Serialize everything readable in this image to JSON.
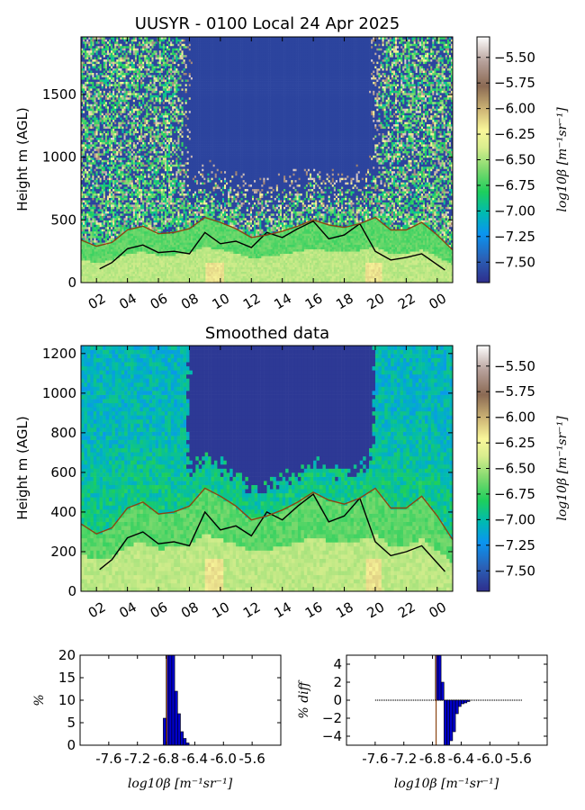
{
  "chart_data": [
    {
      "type": "heatmap",
      "title": "UUSYR - 0100 Local 24 Apr 2025",
      "ylabel": "Height m (AGL)",
      "xlabel": "",
      "x_tick_labels": [
        "02",
        "04",
        "06",
        "08",
        "10",
        "12",
        "14",
        "16",
        "18",
        "20",
        "22",
        "00"
      ],
      "x_tick_hours": [
        2,
        4,
        6,
        8,
        10,
        12,
        14,
        16,
        18,
        20,
        22,
        24
      ],
      "xlim_hours": [
        1,
        25
      ],
      "ylim": [
        0,
        1960
      ],
      "y_ticks": [
        0,
        500,
        1000,
        1500
      ],
      "colorbar": {
        "label": "log10β [m⁻¹sr⁻¹]",
        "range": [
          -7.7,
          -5.3
        ],
        "ticks": [
          -5.5,
          -5.75,
          -6.0,
          -6.25,
          -6.5,
          -6.75,
          -7.0,
          -7.25,
          -7.5
        ],
        "tick_labels": [
          "−5.50",
          "−5.75",
          "−6.00",
          "−6.25",
          "−6.50",
          "−6.75",
          "−7.00",
          "−7.25",
          "−7.50"
        ]
      },
      "series": [
        {
          "color": "#000000",
          "x": [
            2.2,
            3,
            4,
            5,
            6,
            7,
            8,
            9,
            10,
            11,
            12,
            13,
            14,
            15,
            16,
            17,
            18,
            19,
            20,
            21,
            22,
            23,
            24.5
          ],
          "y": [
            110,
            160,
            270,
            300,
            240,
            250,
            230,
            400,
            310,
            330,
            280,
            400,
            360,
            430,
            490,
            350,
            380,
            470,
            250,
            180,
            200,
            230,
            100
          ]
        },
        {
          "color": "#8b4513",
          "x": [
            1,
            2,
            3,
            4,
            5,
            6,
            7,
            8,
            9,
            10,
            11,
            12,
            13,
            14,
            15,
            16,
            17,
            18,
            19,
            20,
            21,
            22,
            23,
            24,
            25
          ],
          "y": [
            340,
            290,
            320,
            420,
            450,
            390,
            400,
            430,
            520,
            480,
            430,
            360,
            380,
            410,
            450,
            500,
            460,
            440,
            470,
            520,
            420,
            420,
            480,
            380,
            260
          ]
        }
      ]
    },
    {
      "type": "heatmap",
      "title": "Smoothed data",
      "ylabel": "Height m (AGL)",
      "xlabel": "",
      "x_tick_labels": [
        "02",
        "04",
        "06",
        "08",
        "10",
        "12",
        "14",
        "16",
        "18",
        "20",
        "22",
        "00"
      ],
      "x_tick_hours": [
        2,
        4,
        6,
        8,
        10,
        12,
        14,
        16,
        18,
        20,
        22,
        24
      ],
      "xlim_hours": [
        1,
        25
      ],
      "ylim": [
        0,
        1240
      ],
      "y_ticks": [
        0,
        200,
        400,
        600,
        800,
        1000,
        1200
      ],
      "colorbar": {
        "label": "log10β [m⁻¹sr⁻¹]",
        "range": [
          -7.7,
          -5.3
        ],
        "ticks": [
          -5.5,
          -5.75,
          -6.0,
          -6.25,
          -6.5,
          -6.75,
          -7.0,
          -7.25,
          -7.5
        ],
        "tick_labels": [
          "−5.50",
          "−5.75",
          "−6.00",
          "−6.25",
          "−6.50",
          "−6.75",
          "−7.00",
          "−7.25",
          "−7.50"
        ]
      },
      "series": [
        {
          "color": "#000000",
          "x": [
            2.2,
            3,
            4,
            5,
            6,
            7,
            8,
            9,
            10,
            11,
            12,
            13,
            14,
            15,
            16,
            17,
            18,
            19,
            20,
            21,
            22,
            23,
            24.5
          ],
          "y": [
            110,
            160,
            270,
            300,
            240,
            250,
            230,
            400,
            310,
            330,
            280,
            400,
            360,
            430,
            490,
            350,
            380,
            470,
            250,
            180,
            200,
            230,
            100
          ]
        },
        {
          "color": "#8b4513",
          "x": [
            1,
            2,
            3,
            4,
            5,
            6,
            7,
            8,
            9,
            10,
            11,
            12,
            13,
            14,
            15,
            16,
            17,
            18,
            19,
            20,
            21,
            22,
            23,
            24,
            25
          ],
          "y": [
            340,
            290,
            320,
            420,
            450,
            390,
            400,
            430,
            520,
            480,
            430,
            360,
            380,
            410,
            450,
            500,
            460,
            440,
            470,
            520,
            420,
            420,
            480,
            380,
            260
          ]
        }
      ]
    },
    {
      "type": "bar",
      "title": "",
      "ylabel": "%",
      "xlabel": "log10β [m⁻¹sr⁻¹]",
      "x_tick_labels": [
        "-7.6",
        "-7.2",
        "-6.8",
        "-6.4",
        "-6.0",
        "-5.6"
      ],
      "x_ticks": [
        -7.6,
        -7.2,
        -6.8,
        -6.4,
        -6.0,
        -5.6
      ],
      "xlim": [
        -8.0,
        -5.2
      ],
      "ylim": [
        0,
        20
      ],
      "y_ticks": [
        0,
        5,
        10,
        15,
        20
      ],
      "bin_edges": [
        -6.84,
        -6.8,
        -6.76,
        -6.72,
        -6.68,
        -6.64,
        -6.6,
        -6.56,
        -6.52,
        -6.48
      ],
      "values": [
        6,
        20,
        20,
        20,
        12,
        7,
        3,
        1.5,
        0.5
      ],
      "bar_color": "#0000cc",
      "marker_line_x": -6.79,
      "marker_line_color": "#8b4513"
    },
    {
      "type": "bar",
      "title": "",
      "ylabel": "% diff",
      "xlabel": "log10β [m⁻¹sr⁻¹]",
      "x_tick_labels": [
        "-7.6",
        "-7.2",
        "-6.8",
        "-6.4",
        "-6.0",
        "-5.6"
      ],
      "x_ticks": [
        -7.6,
        -7.2,
        -6.8,
        -6.4,
        -6.0,
        -5.6
      ],
      "xlim": [
        -8.0,
        -5.2
      ],
      "ylim": [
        -5,
        5
      ],
      "y_ticks": [
        -4,
        -2,
        0,
        2,
        4
      ],
      "bin_edges": [
        -6.76,
        -6.72,
        -6.68,
        -6.64,
        -6.6,
        -6.56,
        -6.52,
        -6.48,
        -6.44,
        -6.4,
        -6.36,
        -6.32,
        -6.28
      ],
      "values": [
        5,
        5,
        2,
        -5,
        -5,
        -4.5,
        -3.5,
        -1.5,
        -0.7,
        -0.4,
        -0.3,
        -0.15
      ],
      "bar_color": "#0000cc",
      "baseline_range": [
        -7.6,
        -5.55
      ],
      "marker_line_x": -6.75,
      "marker_line_color": "#8b4513"
    }
  ]
}
